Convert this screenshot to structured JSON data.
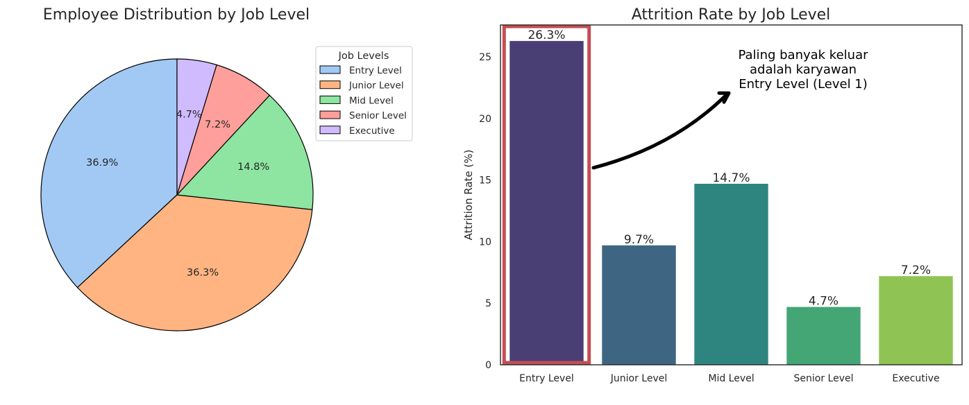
{
  "chart_data": [
    {
      "type": "pie",
      "title": "Employee Distribution by Job Level",
      "labels": [
        "Entry Level",
        "Junior Level",
        "Mid Level",
        "Senior Level",
        "Executive"
      ],
      "values": [
        36.9,
        36.3,
        14.8,
        7.2,
        4.7
      ],
      "value_labels": [
        "36.9%",
        "36.3%",
        "14.8%",
        "7.2%",
        "4.7%"
      ],
      "colors": [
        "#a1c9f4",
        "#ffb482",
        "#8de5a1",
        "#ff9f9b",
        "#d0bbff"
      ],
      "start_angle": 90,
      "direction": "counterclockwise",
      "legend": {
        "title": "Job Levels",
        "placement": "upper-right outside",
        "entries": [
          "Entry Level",
          "Junior Level",
          "Mid Level",
          "Senior Level",
          "Executive"
        ]
      }
    },
    {
      "type": "bar",
      "title": "Attrition Rate by Job Level",
      "categories": [
        "Entry Level",
        "Junior Level",
        "Mid Level",
        "Senior Level",
        "Executive"
      ],
      "values": [
        26.3,
        9.7,
        14.7,
        4.7,
        7.2
      ],
      "value_labels": [
        "26.3%",
        "9.7%",
        "14.7%",
        "4.7%",
        "7.2%"
      ],
      "colors": [
        "#4a3f75",
        "#3e6682",
        "#2e8580",
        "#44a675",
        "#8fc454"
      ],
      "xlabel": "",
      "ylabel": "Attrition Rate (%)",
      "ylim": [
        0,
        27.6
      ],
      "yticks": [
        0,
        5,
        10,
        15,
        20,
        25
      ],
      "grid": false,
      "highlight": {
        "category": "Entry Level",
        "color": "#c44e52"
      },
      "annotation": {
        "lines": [
          "Paling banyak keluar",
          "adalah karyawan",
          "Entry Level (Level 1)"
        ],
        "arrow_from_value": 16,
        "arrow_to_value": 21.9
      }
    }
  ]
}
